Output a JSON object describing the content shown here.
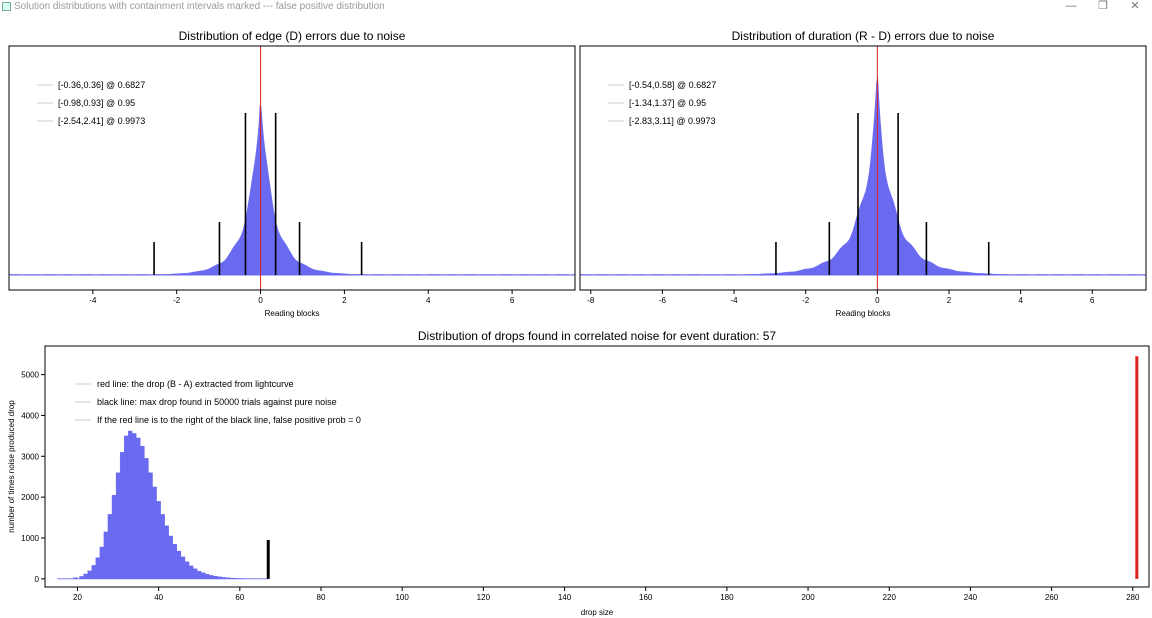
{
  "window": {
    "title": "Solution distributions with containment intervals marked --- false positive distribution",
    "controls": {
      "minimize": "—",
      "restore": "❐",
      "close": "✕"
    }
  },
  "colors": {
    "hist": "#6a6af0",
    "red": "#e02020",
    "black": "#000000",
    "axis": "#000000"
  },
  "chart_data": [
    {
      "type": "bar",
      "title": "Distribution of edge (D) errors due to noise",
      "xlabel": "Reading blocks",
      "ylabel": "",
      "xlim": [
        -6,
        7.5
      ],
      "xticks": [
        -4,
        -2,
        0,
        2,
        4,
        6
      ],
      "grid": false,
      "legend_position": "top-left",
      "distribution": {
        "center": 0,
        "sigma": 0.36,
        "label": "histogram of edge errors"
      },
      "red_line_x": 0,
      "legend": [
        "[-0.36,0.36] @ 0.6827",
        "[-0.98,0.93] @ 0.95",
        "[-2.54,2.41] @ 0.9973"
      ],
      "intervals": [
        {
          "lo": -0.36,
          "hi": 0.36,
          "level": 0.6827
        },
        {
          "lo": -0.98,
          "hi": 0.93,
          "level": 0.95
        },
        {
          "lo": -2.54,
          "hi": 2.41,
          "level": 0.9973
        }
      ]
    },
    {
      "type": "bar",
      "title": "Distribution of duration (R - D) errors due to noise",
      "xlabel": "Reading blocks",
      "ylabel": "",
      "xlim": [
        -8.3,
        7.5
      ],
      "xticks": [
        -8,
        -6,
        -4,
        -2,
        0,
        2,
        4,
        6
      ],
      "grid": false,
      "legend_position": "top-left",
      "distribution": {
        "center": 0,
        "sigma": 0.56,
        "label": "histogram of duration errors"
      },
      "red_line_x": 0,
      "legend": [
        "[-0.54,0.58] @ 0.6827",
        "[-1.34,1.37] @ 0.95",
        "[-2.83,3.11] @ 0.9973"
      ],
      "intervals": [
        {
          "lo": -0.54,
          "hi": 0.58,
          "level": 0.6827
        },
        {
          "lo": -1.34,
          "hi": 1.37,
          "level": 0.95
        },
        {
          "lo": -2.83,
          "hi": 3.11,
          "level": 0.9973
        }
      ]
    },
    {
      "type": "bar",
      "title": "Distribution of drops found in correlated noise for event duration: 57",
      "xlabel": "drop size",
      "ylabel": "number of times noise produced drop",
      "xlim": [
        12,
        284
      ],
      "ylim": [
        -200,
        5700
      ],
      "xticks": [
        20,
        40,
        60,
        80,
        100,
        120,
        140,
        160,
        180,
        200,
        220,
        240,
        260,
        280
      ],
      "yticks": [
        0,
        1000,
        2000,
        3000,
        4000,
        5000
      ],
      "grid": false,
      "legend_position": "top-left",
      "legend": [
        "red line: the drop (B - A) extracted from lightcurve",
        "black line: max drop found in 50000 trials against pure noise",
        "If the red line is to the right of the black line, false positive prob = 0"
      ],
      "bins": [
        {
          "x": 19.5,
          "v": 30
        },
        {
          "x": 21,
          "v": 60
        },
        {
          "x": 22,
          "v": 120
        },
        {
          "x": 23,
          "v": 200
        },
        {
          "x": 24,
          "v": 330
        },
        {
          "x": 25,
          "v": 520
        },
        {
          "x": 26,
          "v": 780
        },
        {
          "x": 27,
          "v": 1150
        },
        {
          "x": 28,
          "v": 1580
        },
        {
          "x": 29,
          "v": 2050
        },
        {
          "x": 30,
          "v": 2600
        },
        {
          "x": 31,
          "v": 3100
        },
        {
          "x": 32,
          "v": 3500
        },
        {
          "x": 33,
          "v": 3620
        },
        {
          "x": 34,
          "v": 3560
        },
        {
          "x": 35,
          "v": 3450
        },
        {
          "x": 36,
          "v": 3250
        },
        {
          "x": 37,
          "v": 2950
        },
        {
          "x": 38,
          "v": 2600
        },
        {
          "x": 39,
          "v": 2250
        },
        {
          "x": 40,
          "v": 1900
        },
        {
          "x": 41,
          "v": 1580
        },
        {
          "x": 42,
          "v": 1300
        },
        {
          "x": 43,
          "v": 1050
        },
        {
          "x": 44,
          "v": 850
        },
        {
          "x": 45,
          "v": 680
        },
        {
          "x": 46,
          "v": 540
        },
        {
          "x": 47,
          "v": 420
        },
        {
          "x": 48,
          "v": 320
        },
        {
          "x": 49,
          "v": 250
        },
        {
          "x": 50,
          "v": 190
        },
        {
          "x": 51,
          "v": 150
        },
        {
          "x": 52,
          "v": 115
        },
        {
          "x": 53,
          "v": 85
        },
        {
          "x": 54,
          "v": 65
        },
        {
          "x": 55,
          "v": 50
        },
        {
          "x": 56,
          "v": 38
        },
        {
          "x": 57,
          "v": 28
        },
        {
          "x": 58,
          "v": 20
        },
        {
          "x": 59,
          "v": 14
        },
        {
          "x": 60,
          "v": 10
        },
        {
          "x": 61,
          "v": 7
        },
        {
          "x": 62,
          "v": 5
        },
        {
          "x": 63,
          "v": 4
        }
      ],
      "black_line": {
        "x": 67,
        "height": 950
      },
      "red_line": {
        "x": 281,
        "height": 5450
      }
    }
  ]
}
